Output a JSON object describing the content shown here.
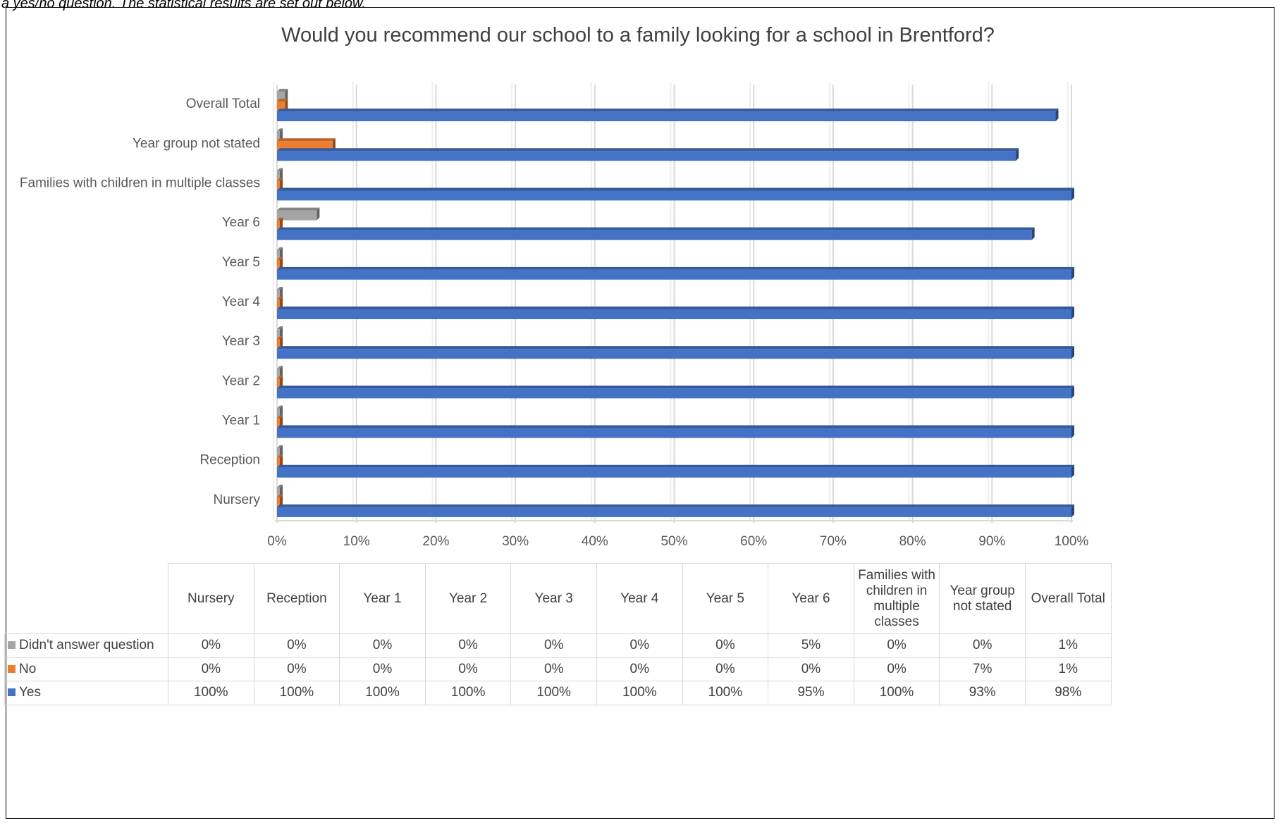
{
  "intro_text": "a yes/no question. The statistical results are set out below.",
  "chart_data": {
    "type": "bar",
    "orientation": "horizontal",
    "title": "Would you recommend our school to a family looking for a school in Brentford?",
    "categories": [
      "Nursery",
      "Reception",
      "Year 1",
      "Year 2",
      "Year 3",
      "Year 4",
      "Year 5",
      "Year 6",
      "Families with children in multiple classes",
      "Year group not stated",
      "Overall Total"
    ],
    "table_column_headers": [
      "Nursery",
      "Reception",
      "Year 1",
      "Year 2",
      "Year 3",
      "Year 4",
      "Year 5",
      "Year 6",
      "Families with children in multiple classes",
      "Year group not stated",
      "Overall Total"
    ],
    "series": [
      {
        "name": "Didn't answer question",
        "color": "#a5a5a5",
        "values": [
          0,
          0,
          0,
          0,
          0,
          0,
          0,
          5,
          0,
          0,
          1
        ],
        "labels": [
          "0%",
          "0%",
          "0%",
          "0%",
          "0%",
          "0%",
          "0%",
          "5%",
          "0%",
          "0%",
          "1%"
        ]
      },
      {
        "name": "No",
        "color": "#ed7d31",
        "values": [
          0,
          0,
          0,
          0,
          0,
          0,
          0,
          0,
          0,
          7,
          1
        ],
        "labels": [
          "0%",
          "0%",
          "0%",
          "0%",
          "0%",
          "0%",
          "0%",
          "0%",
          "0%",
          "7%",
          "1%"
        ]
      },
      {
        "name": "Yes",
        "color": "#4472c4",
        "values": [
          100,
          100,
          100,
          100,
          100,
          100,
          100,
          95,
          100,
          93,
          98
        ],
        "labels": [
          "100%",
          "100%",
          "100%",
          "100%",
          "100%",
          "100%",
          "100%",
          "95%",
          "100%",
          "93%",
          "98%"
        ]
      }
    ],
    "xlim": [
      0,
      100
    ],
    "x_ticks": [
      0,
      10,
      20,
      30,
      40,
      50,
      60,
      70,
      80,
      90,
      100
    ],
    "x_tick_labels": [
      "0%",
      "10%",
      "20%",
      "30%",
      "40%",
      "50%",
      "60%",
      "70%",
      "80%",
      "90%",
      "100%"
    ],
    "grid": true,
    "legend": "data table below chart"
  }
}
